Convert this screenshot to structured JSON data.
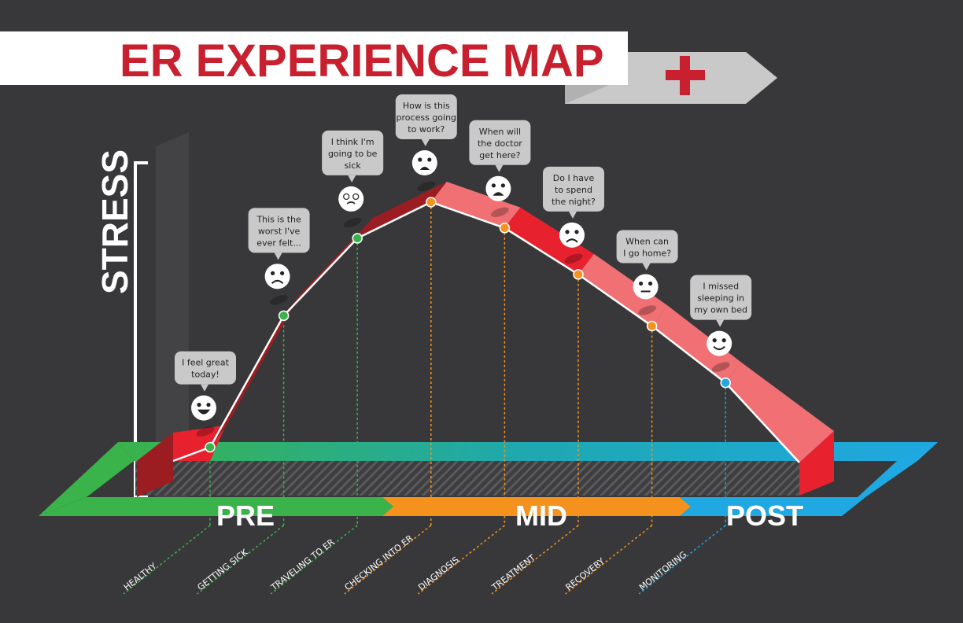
{
  "title": "ER EXPERIENCE MAP",
  "axis_label": "STRESS",
  "phases": [
    {
      "label": "PRE",
      "color": "#3ab34a"
    },
    {
      "label": "MID",
      "color": "#f5921e"
    },
    {
      "label": "POST",
      "color": "#1fa8e1"
    }
  ],
  "stages": [
    {
      "label": "HEALTHY",
      "phase": "PRE",
      "stress_level": 0.05,
      "thought": [
        "I feel great",
        "today!"
      ],
      "mood": "very-happy"
    },
    {
      "label": "GETTING SICK",
      "phase": "PRE",
      "stress_level": 0.56,
      "thought": [
        "This is the",
        "worst I've",
        "ever felt..."
      ],
      "mood": "sad"
    },
    {
      "label": "TRAVELING TO ER",
      "phase": "PRE",
      "stress_level": 0.86,
      "thought": [
        "I think I'm",
        "going to be",
        "sick"
      ],
      "mood": "nauseous"
    },
    {
      "label": "CHECKING INTO ER",
      "phase": "MID",
      "stress_level": 1.0,
      "thought": [
        "How is this",
        "process going",
        "to work?"
      ],
      "mood": "anxious"
    },
    {
      "label": "DIAGNOSIS",
      "phase": "MID",
      "stress_level": 0.9,
      "thought": [
        "When will",
        "the doctor",
        "get here?"
      ],
      "mood": "worried"
    },
    {
      "label": "TREATMENT",
      "phase": "MID",
      "stress_level": 0.72,
      "thought": [
        "Do I have",
        "to spend",
        "the night?"
      ],
      "mood": "sad"
    },
    {
      "label": "RECOVERY",
      "phase": "MID",
      "stress_level": 0.52,
      "thought": [
        "When can",
        "I go home?"
      ],
      "mood": "neutral"
    },
    {
      "label": "MONITORING",
      "phase": "POST",
      "stress_level": 0.3,
      "thought": [
        "I missed",
        "sleeping in",
        "my own bed"
      ],
      "mood": "happy"
    }
  ],
  "colors": {
    "background": "#38383a",
    "ribbon_top": "#e8212f",
    "ribbon_light": "#f07074",
    "ribbon_side": "#9b1d22",
    "title_red": "#c8202e",
    "bubble": "#c9c9c9"
  }
}
